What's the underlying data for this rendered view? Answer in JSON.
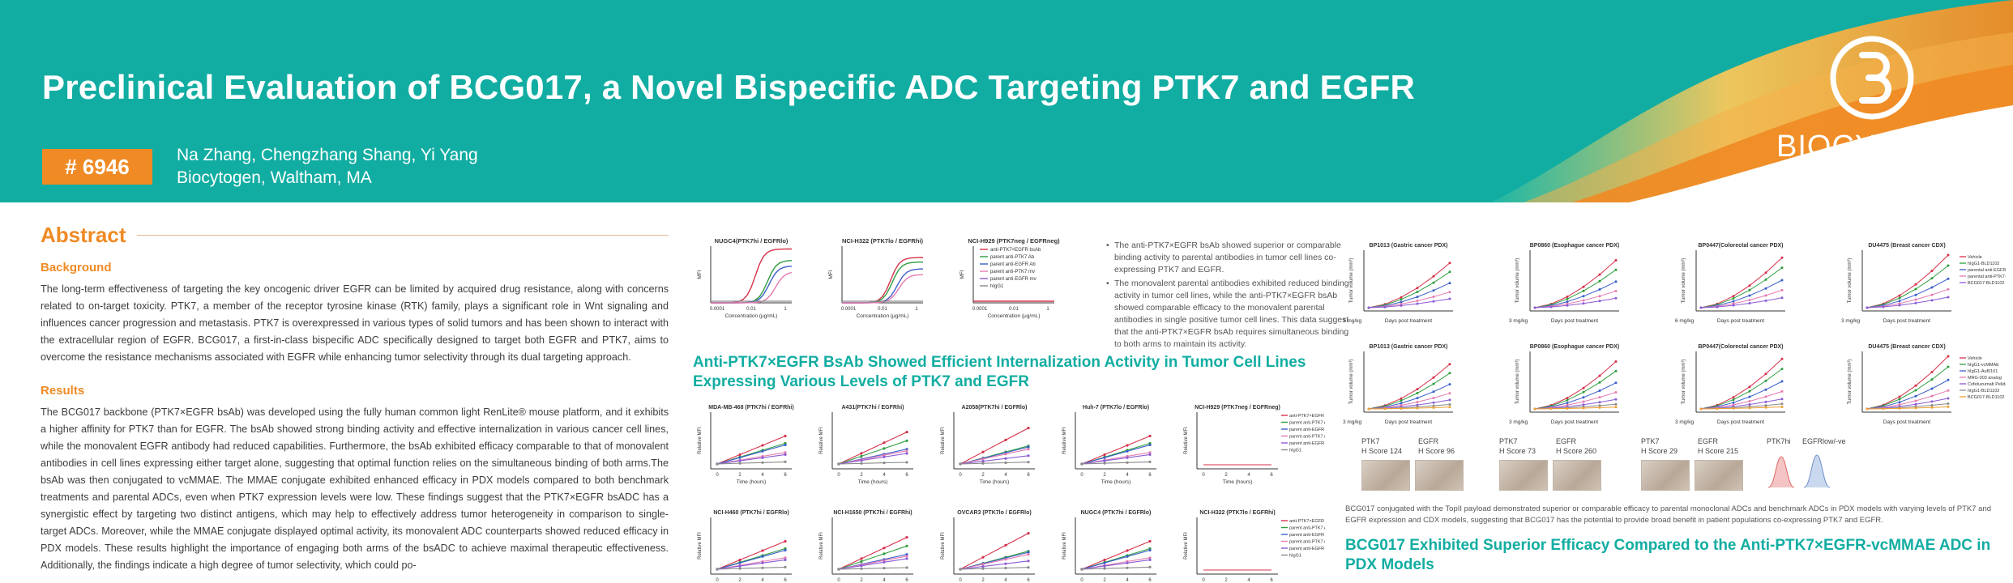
{
  "header": {
    "title": "Preclinical Evaluation of BCG017, a Novel Bispecific ADC Targeting PTK7 and EGFR",
    "poster_number": "# 6946",
    "authors": "Na Zhang, Chengzhang Shang, Yi Yang",
    "affiliation": "Biocytogen, Waltham, MA",
    "logo_text": "BIOCYTOGEN",
    "logo_icon": "biocytogen-logo-icon"
  },
  "colors": {
    "teal": "#12ada2",
    "orange": "#f08a24"
  },
  "abstract": {
    "heading": "Abstract",
    "background_heading": "Background",
    "background_text": "The long-term effectiveness of targeting the key oncogenic driver EGFR can be limited by acquired drug resistance, along with concerns related to on-target toxicity. PTK7, a member of the receptor tyrosine kinase (RTK) family, plays a significant role in Wnt signaling and influences cancer progression and metastasis. PTK7 is overexpressed in various types of solid tumors and has been shown to interact with the extracellular region of EGFR. BCG017, a first-in-class bispecific ADC specifically designed to target both EGFR and PTK7, aims to overcome the resistance mechanisms associated with EGFR while enhancing tumor selectivity through its dual targeting approach.",
    "results_heading": "Results",
    "results_text": "The BCG017 backbone (PTK7×EGFR bsAb) was developed using the fully human common light RenLite® mouse platform, and it exhibits a higher affinity for PTK7 than for EGFR. The bsAb showed strong binding activity and effective internalization in various cancer cell lines, while the monovalent EGFR antibody had reduced capabilities. Furthermore, the bsAb exhibited efficacy comparable to that of monovalent antibodies in cell lines expressing either target alone, suggesting that optimal function relies on the simultaneous binding of both arms.The bsAb was then conjugated to vcMMAE. The MMAE conjugate exhibited enhanced efficacy in PDX models compared to both benchmark treatments and parental ADCs, even when PTK7 expression levels were low. These findings suggest that the PTK7×EGFR bsADC has a synergistic effect by targeting two distinct antigens, which may help to effectively address tumor heterogeneity in comparison to single-target ADCs. Moreover, while the MMAE conjugate displayed optimal activity, its monovalent ADC counterparts showed reduced efficacy in PDX models. These results highlight the importance of engaging both arms of the bsADC to achieve maximal therapeutic effectiveness. Additionally, the findings indicate a high degree of tumor selectivity, which could po-"
  },
  "binding": {
    "charts": [
      {
        "title": "NUGC4(PTK7hi / EGFRlo)",
        "ylabel": "MFI",
        "xlabel": "Concentration (µg/mL)",
        "xticks": [
          "0.0001",
          "0.01",
          "1"
        ]
      },
      {
        "title": "NCI-H322 (PTK7lo / EGFRhi)",
        "ylabel": "MFI",
        "xlabel": "Concentration (µg/mL)",
        "xticks": [
          "0.0001",
          "0.01",
          "1"
        ]
      },
      {
        "title": "NCI-H929 (PTK7neg / EGFRneg)",
        "ylabel": "MFI",
        "xlabel": "Concentration (µg/mL)",
        "xticks": [
          "0.0001",
          "0.01",
          "1"
        ]
      }
    ],
    "legend": [
      "anti-PTK7×EGFR bsAb",
      "parent anti-PTK7 Ab",
      "parent anti-EGFR Ab",
      "parent anti-PTK7 mv",
      "parent anti-EGFR mv",
      "hIgG1"
    ],
    "bullets": [
      "The anti-PTK7×EGFR bsAb showed superior or comparable binding activity to parental antibodies in tumor cell lines co-expressing PTK7 and EGFR.",
      "The monovalent parental antibodies exhibited reduced binding activity in tumor cell lines, while the anti-PTK7×EGFR bsAb showed comparable efficacy to the monovalent parental antibodies in single positive tumor cell lines. This data suggest that the anti-PTK7×EGFR bsAb requires simultaneous binding to both arms to maintain its activity."
    ]
  },
  "internalization": {
    "heading": "Anti-PTK7×EGFR BsAb Showed Efficient Internalization Activity in Tumor Cell Lines Expressing Various Levels of PTK7 and EGFR",
    "row1": [
      "MDA-MB-468 (PTK7hi / EGFRhi)",
      "A431(PTK7hi / EGFRhi)",
      "A2058(PTK7hi / EGFRlo)",
      "Huh-7 (PTK7lo / EGFRlo)",
      "NCI-H929 (PTK7neg / EGFRneg)"
    ],
    "row2": [
      "NCI-H460 (PTK7hi / EGFRlo)",
      "NCI-H1650 (PTK7hi / EGFRhi)",
      "OVCAR3 (PTK7lo / EGFRlo)",
      "NUGC4 (PTK7hi / EGFRlo)",
      "NCI-H322 (PTK7lo / EGFRhi)"
    ],
    "ylabel": "Relative MFI",
    "xlabel": "Time (hours)",
    "xticks": [
      "0",
      "2",
      "4",
      "6"
    ],
    "legend": [
      "anti-PTK7×EGFR bsAb",
      "parent anti-PTK7 Ab",
      "parent anti-EGFR Ab",
      "parent anti-PTK7 mv",
      "parent anti-EGFR mv",
      "hIgG1"
    ]
  },
  "efficacy": {
    "row1_titles": [
      "BP1013 (Gastric cancer PDX)",
      "BP0860 (Esophague cancer PDX)",
      "BP0447(Colorectal cancer PDX)",
      "DU4475 (Breast cancer CDX)"
    ],
    "row2_titles": [
      "BP1013 (Gastric cancer PDX)",
      "BP0860 (Esophague cancer PDX)",
      "BP0447(Colorectal cancer PDX)",
      "DU4475 (Breast cancer CDX)"
    ],
    "ylabel": "Tumor volume (mm³)",
    "xlabel": "Days post treatment",
    "dose_labels": [
      "3 mg/kg",
      "3 mg/kg",
      "6 mg/kg",
      "3 mg/kg"
    ],
    "dose_labels_row2": [
      "3 mg/kg",
      "3 mg/kg",
      "3 mg/kg",
      ""
    ],
    "legend1": [
      "Vehicle",
      "hIgG1-BLD1102",
      "parental anti-EGFR-BLD1102",
      "parental anti-PTK7-BLD1102",
      "BCG017-BLD1102"
    ],
    "legend2": [
      "Vehicle",
      "hIgG1-vcMMAE",
      "hIgG1-Auf0101",
      "MRG-003 analog",
      "Cofetuzumab Pelidotin analog",
      "hIgG1-BLD1102",
      "BCG017-BLD1102"
    ],
    "ihc": [
      {
        "ptk7": "PTK7",
        "egfr": "EGFR",
        "ptk7_score": "H Score 124",
        "egfr_score": "H Score 96"
      },
      {
        "ptk7": "PTK7",
        "egfr": "EGFR",
        "ptk7_score": "H Score 73",
        "egfr_score": "H Score 260"
      },
      {
        "ptk7": "PTK7",
        "egfr": "EGFR",
        "ptk7_score": "H Score 29",
        "egfr_score": "H Score 215"
      },
      {
        "ptk7": "PTK7hi",
        "egfr": "EGFRlow/-ve"
      }
    ],
    "caption": "BCG017 conjugated with the TopII payload demonstrated superior or comparable efficacy to parental monoclonal ADCs and benchmark ADCs in PDX models with varying levels of PTK7 and EGFR expression and CDX models, suggesting that BCG017 has the potential to provide broad benefit in patient populations co-expressing PTK7 and EGFR.",
    "heading2": "BCG017 Exhibited Superior Efficacy Compared to the Anti-PTK7×EGFR-vcMMAE ADC in PDX Models"
  }
}
